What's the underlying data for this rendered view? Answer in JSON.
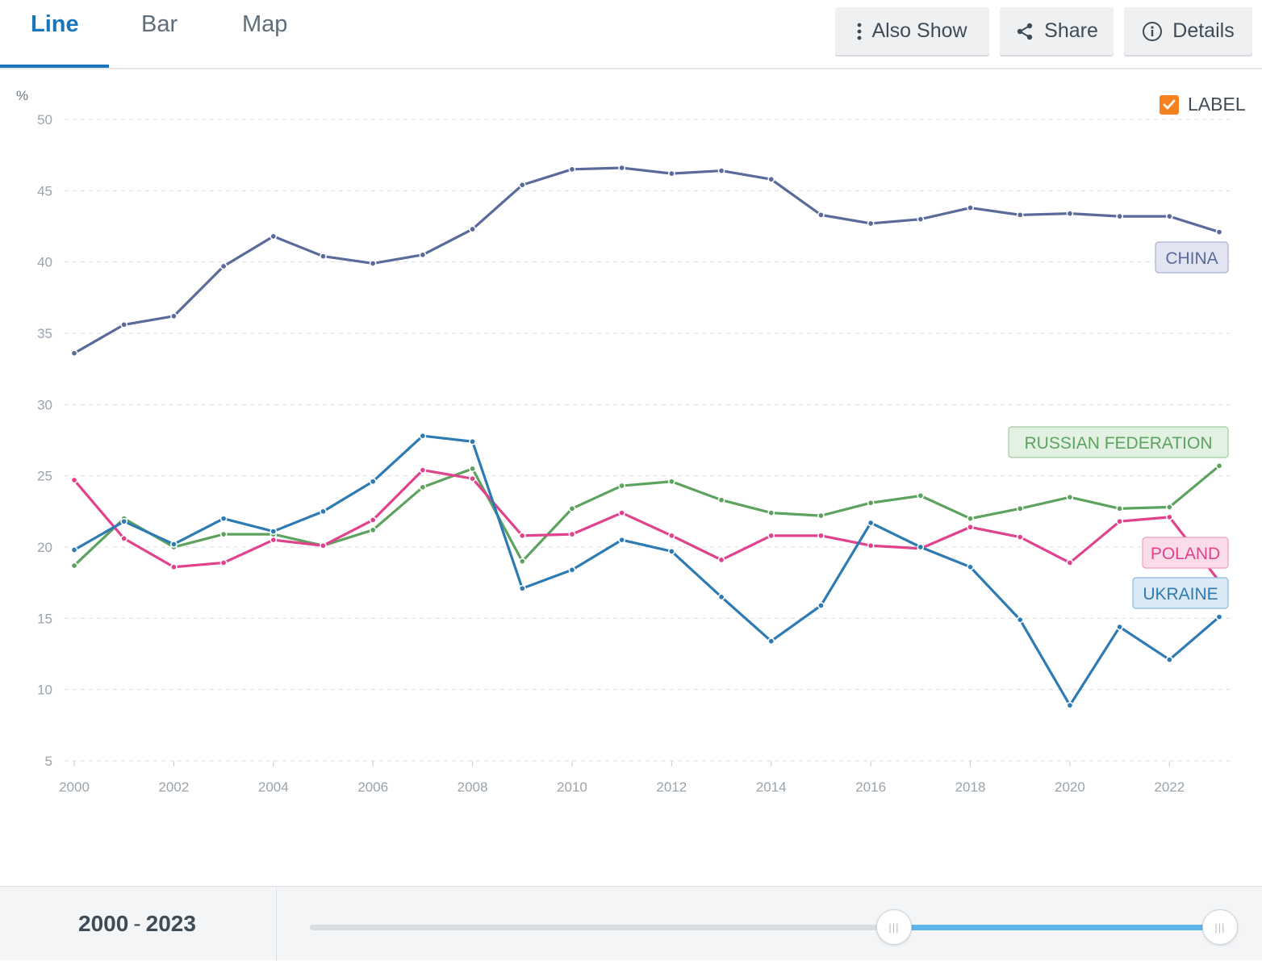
{
  "tabs": [
    {
      "label": "Line",
      "active": true
    },
    {
      "label": "Bar",
      "active": false
    },
    {
      "label": "Map",
      "active": false
    }
  ],
  "toolbar": {
    "also_show": "Also Show",
    "share": "Share",
    "details": "Details"
  },
  "label_toggle": {
    "text": "LABEL",
    "checked": true,
    "color": "#f5811f"
  },
  "range": {
    "start": "2000",
    "separator": "-",
    "end": "2023"
  },
  "chart_data": {
    "type": "line",
    "title": "",
    "xlabel": "",
    "ylabel": "%",
    "x": [
      2000,
      2001,
      2002,
      2003,
      2004,
      2005,
      2006,
      2007,
      2008,
      2009,
      2010,
      2011,
      2012,
      2013,
      2014,
      2015,
      2016,
      2017,
      2018,
      2019,
      2020,
      2021,
      2022,
      2023
    ],
    "xticks": [
      2000,
      2002,
      2004,
      2006,
      2008,
      2010,
      2012,
      2014,
      2016,
      2018,
      2020,
      2022
    ],
    "yticks": [
      5,
      10,
      15,
      20,
      25,
      30,
      35,
      40,
      45,
      50
    ],
    "ylim": [
      5,
      50
    ],
    "grid": true,
    "series": [
      {
        "name": "CHINA",
        "color": "#5a6a9a",
        "label_bg": "#e2e5f1",
        "label_border": "#a9b0d0",
        "values": [
          33.6,
          35.6,
          36.2,
          39.7,
          41.8,
          40.4,
          39.9,
          40.5,
          42.3,
          45.4,
          46.5,
          46.6,
          46.2,
          46.4,
          45.8,
          43.3,
          42.7,
          43.0,
          43.8,
          43.3,
          43.4,
          43.2,
          43.2,
          42.1
        ]
      },
      {
        "name": "RUSSIAN FEDERATION",
        "color": "#5da25e",
        "label_bg": "#e3f1e3",
        "label_border": "#9fcb9f",
        "values": [
          18.7,
          22.0,
          20.0,
          20.9,
          20.9,
          20.1,
          21.2,
          24.2,
          25.5,
          19.0,
          22.7,
          24.3,
          24.6,
          23.3,
          22.4,
          22.2,
          23.1,
          23.6,
          22.0,
          22.7,
          23.5,
          22.7,
          22.8,
          25.7
        ]
      },
      {
        "name": "POLAND",
        "color": "#e0428b",
        "label_bg": "#fbdce9",
        "label_border": "#f09cc2",
        "values": [
          24.7,
          20.6,
          18.6,
          18.9,
          20.5,
          20.1,
          21.9,
          25.4,
          24.8,
          20.8,
          20.9,
          22.4,
          20.8,
          19.1,
          20.8,
          20.8,
          20.1,
          19.9,
          21.4,
          20.7,
          18.9,
          21.8,
          22.1,
          17.6
        ]
      },
      {
        "name": "UKRAINE",
        "color": "#2e7bb4",
        "label_bg": "#dbe9f5",
        "label_border": "#8dbbe0",
        "values": [
          19.8,
          21.8,
          20.2,
          22.0,
          21.1,
          22.5,
          24.6,
          27.8,
          27.4,
          17.1,
          18.4,
          20.5,
          19.7,
          16.5,
          13.4,
          15.9,
          21.7,
          20.0,
          18.6,
          14.9,
          8.9,
          14.4,
          12.1,
          15.1
        ]
      }
    ]
  }
}
